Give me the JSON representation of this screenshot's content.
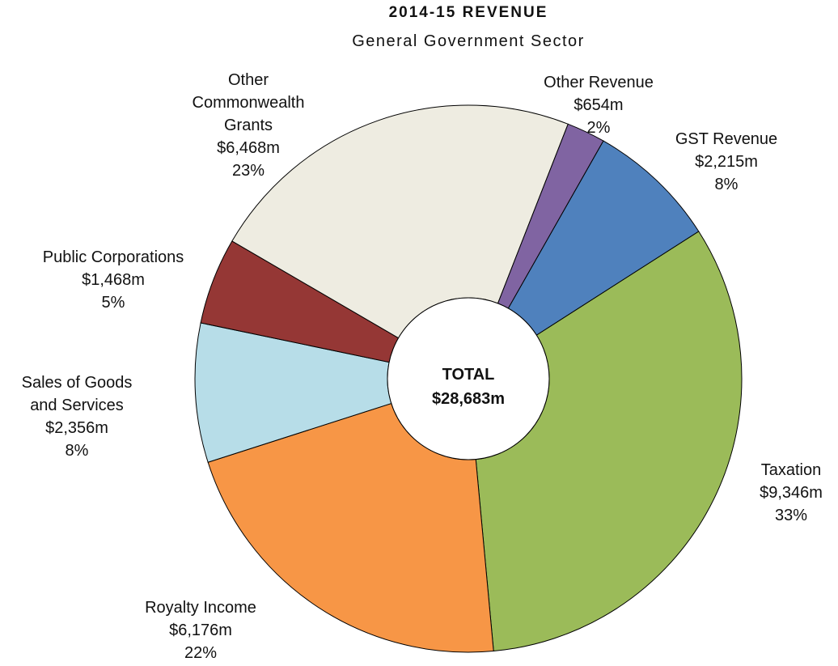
{
  "chart_data": {
    "type": "donut",
    "title": "2014-15 REVENUE",
    "subtitle": "General Government Sector",
    "categories": [
      "Taxation",
      "Royalty Income",
      "Sales of Goods\nand Services",
      "Public Corporations",
      "Other\nCommonwealth\nGrants",
      "Other Revenue",
      "GST Revenue"
    ],
    "values": [
      9346,
      6176,
      2356,
      1468,
      6468,
      654,
      2215
    ],
    "value_labels": [
      "$9,346m",
      "$6,176m",
      "$2,356m",
      "$1,468m",
      "$6,468m",
      "$654m",
      "$2,215m"
    ],
    "percents": [
      33,
      22,
      8,
      5,
      23,
      2,
      8
    ],
    "percent_labels": [
      "33%",
      "22%",
      "8%",
      "5%",
      "23%",
      "2%",
      "8%"
    ],
    "colors": [
      "#9bbb59",
      "#f79646",
      "#b7dde8",
      "#953735",
      "#eeece1",
      "#8064a2",
      "#4f81bd"
    ],
    "center_label": "TOTAL",
    "total": 28683,
    "total_label": "$28,683m"
  }
}
